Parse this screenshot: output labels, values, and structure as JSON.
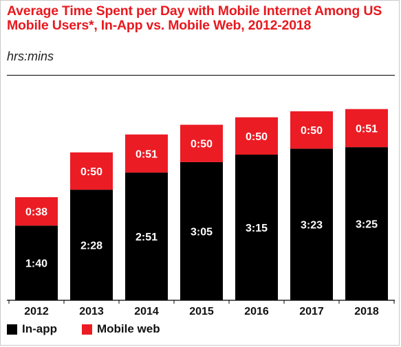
{
  "title": "Average Time Spent per Day with Mobile Internet Among US Mobile Users*, In-App vs. Mobile Web, 2012-2018",
  "subtitle": "hrs:mins",
  "colors": {
    "in_app": "#000000",
    "mobile_web": "#ec1c24",
    "title": "#e8191f"
  },
  "chart_data": {
    "type": "bar",
    "stacked": true,
    "categories": [
      "2012",
      "2013",
      "2014",
      "2015",
      "2016",
      "2017",
      "2018"
    ],
    "series": [
      {
        "name": "In-app",
        "values": [
          100,
          148,
          171,
          185,
          195,
          203,
          205
        ],
        "labels": [
          "1:40",
          "2:28",
          "2:51",
          "3:05",
          "3:15",
          "3:23",
          "3:25"
        ]
      },
      {
        "name": "Mobile web",
        "values": [
          38,
          50,
          51,
          50,
          50,
          50,
          51
        ],
        "labels": [
          "0:38",
          "0:50",
          "0:51",
          "0:50",
          "0:50",
          "0:50",
          "0:51"
        ]
      }
    ],
    "unit": "minutes",
    "grid": false,
    "legend_position": "bottom-left"
  }
}
